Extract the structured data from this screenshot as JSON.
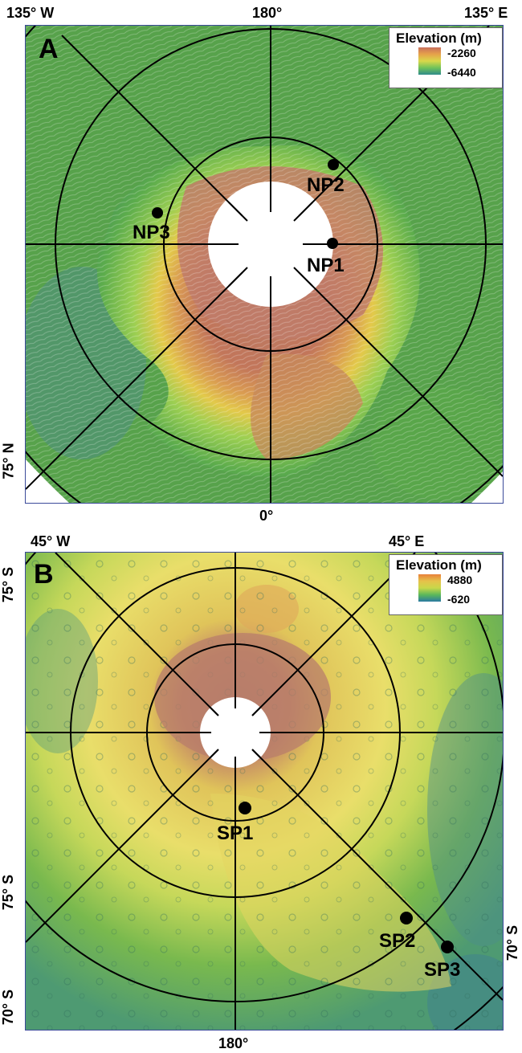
{
  "panel_a": {
    "letter": "A",
    "top_left_label": "135° W",
    "top_center_label": "180°",
    "top_right_label": "135° E",
    "bottom_center_label": "0°",
    "left_side_label": "75° N",
    "legend": {
      "title": "Elevation (m)",
      "max": "-2260",
      "min": "-6440"
    },
    "sites": [
      {
        "label": "NP1",
        "color": "#000000"
      },
      {
        "label": "NP2",
        "color": "#000000"
      },
      {
        "label": "NP3",
        "color": "#000000"
      }
    ]
  },
  "panel_b": {
    "letter": "B",
    "top_left_label": "45° W",
    "top_right_label": "45° E",
    "bottom_center_label": "180°",
    "left_upper_label": "75° S",
    "left_middle_label": "75° S",
    "left_lower_label": "70° S",
    "right_label": "70° S",
    "legend": {
      "title": "Elevation (m)",
      "max": "4880",
      "min": "-620"
    },
    "sites": [
      {
        "label": "SP1",
        "color": "#000000"
      },
      {
        "label": "SP2",
        "color": "#000000"
      },
      {
        "label": "SP3",
        "color": "#000000"
      }
    ]
  },
  "colors": {
    "high_elev": "#c0735d",
    "mid_elev": "#e8d24a",
    "low_elev": "#3f8f4a",
    "deep_low": "#2a6e8a",
    "panel_border": "#3b4a9a"
  }
}
